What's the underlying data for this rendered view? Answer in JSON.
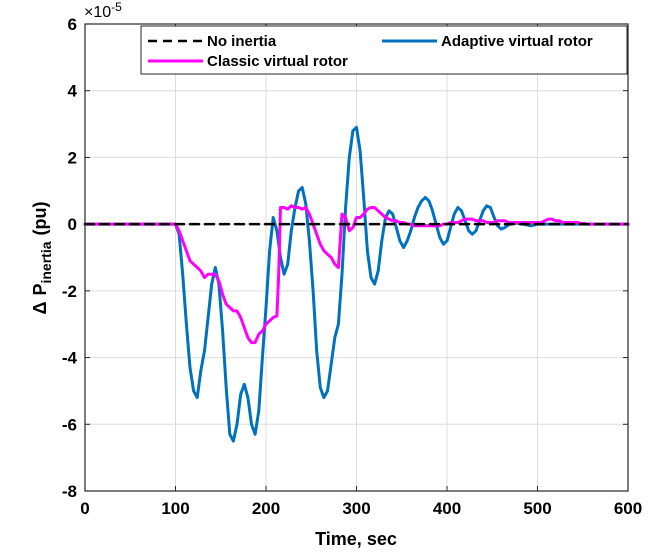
{
  "chart_data": {
    "type": "line",
    "xlabel": "Time, sec",
    "ylabel_parts": {
      "delta": "Δ",
      "main": "P",
      "sub": "inertia",
      "unit": "(pu)"
    },
    "y_exponent": {
      "base": "×10",
      "power": "-5"
    },
    "xlim": [
      0,
      600
    ],
    "ylim": [
      -8,
      6
    ],
    "x_ticks": [
      0,
      100,
      200,
      300,
      400,
      500,
      600
    ],
    "y_ticks": [
      -8,
      -6,
      -4,
      -2,
      0,
      2,
      4,
      6
    ],
    "grid": true,
    "legend_placement": "top",
    "series": [
      {
        "name": "No inertia",
        "color": "#000000",
        "style": "dashed",
        "x": [
          0,
          600
        ],
        "y": [
          0,
          0
        ]
      },
      {
        "name": "Adaptive virtual rotor",
        "color": "#0072BD",
        "style": "solid",
        "x": [
          0,
          100,
          104,
          108,
          112,
          116,
          120,
          124,
          128,
          132,
          136,
          140,
          144,
          148,
          152,
          156,
          160,
          164,
          168,
          172,
          176,
          180,
          184,
          188,
          192,
          196,
          200,
          204,
          208,
          212,
          216,
          220,
          224,
          228,
          232,
          236,
          240,
          244,
          248,
          252,
          256,
          260,
          264,
          268,
          272,
          276,
          280,
          284,
          288,
          292,
          296,
          300,
          304,
          308,
          312,
          316,
          320,
          324,
          328,
          332,
          336,
          340,
          344,
          348,
          352,
          356,
          360,
          364,
          368,
          372,
          376,
          380,
          384,
          388,
          392,
          396,
          400,
          404,
          408,
          412,
          416,
          420,
          424,
          428,
          432,
          436,
          440,
          444,
          448,
          452,
          456,
          460,
          464,
          468,
          472,
          476,
          480,
          484,
          488,
          492,
          496,
          500,
          504,
          508,
          512,
          516,
          520,
          524,
          528,
          532,
          536,
          540,
          544,
          548,
          552,
          556,
          560,
          564,
          568,
          600
        ],
        "y": [
          0,
          0,
          -0.3,
          -1.5,
          -3.0,
          -4.3,
          -5.0,
          -5.2,
          -4.4,
          -3.8,
          -2.8,
          -1.8,
          -1.3,
          -1.8,
          -3.2,
          -4.9,
          -6.3,
          -6.5,
          -6.0,
          -5.1,
          -4.8,
          -5.2,
          -6.0,
          -6.3,
          -5.6,
          -4.0,
          -2.5,
          -0.8,
          0.2,
          -0.2,
          -1.0,
          -1.5,
          -1.2,
          -0.2,
          0.5,
          1.0,
          1.1,
          0.6,
          -0.5,
          -2.0,
          -3.8,
          -4.9,
          -5.2,
          -5.0,
          -4.2,
          -3.4,
          -3.0,
          -1.5,
          0.5,
          2.0,
          2.8,
          2.9,
          2.2,
          0.8,
          -0.8,
          -1.6,
          -1.8,
          -1.4,
          -0.5,
          0.2,
          0.4,
          0.3,
          -0.1,
          -0.5,
          -0.7,
          -0.5,
          -0.2,
          0.2,
          0.5,
          0.7,
          0.8,
          0.7,
          0.4,
          0.0,
          -0.4,
          -0.6,
          -0.5,
          -0.1,
          0.3,
          0.5,
          0.4,
          0.1,
          -0.2,
          -0.3,
          -0.2,
          0.1,
          0.4,
          0.55,
          0.5,
          0.2,
          -0.05,
          -0.15,
          -0.1,
          -0.02,
          0.02,
          0.03,
          0.02,
          0.0,
          -0.02,
          -0.05,
          -0.03,
          0.0,
          0.0,
          0.0,
          0.0,
          0.0,
          0.0,
          0.0,
          0.0,
          0.0,
          0.0,
          0.0,
          0.0,
          0.0,
          0.0,
          0.0,
          0.0,
          0.0,
          0.0,
          0.0
        ]
      },
      {
        "name": "Classic virtual rotor",
        "color": "#FF00FF",
        "style": "solid",
        "x": [
          0,
          100,
          104,
          108,
          112,
          116,
          120,
          124,
          128,
          132,
          136,
          140,
          144,
          148,
          152,
          156,
          160,
          164,
          168,
          172,
          176,
          180,
          184,
          188,
          192,
          196,
          200,
          204,
          208,
          212,
          214,
          216,
          220,
          224,
          228,
          232,
          236,
          240,
          244,
          248,
          252,
          256,
          260,
          264,
          268,
          272,
          276,
          280,
          282,
          284,
          288,
          292,
          296,
          300,
          304,
          308,
          312,
          316,
          320,
          324,
          328,
          332,
          336,
          340,
          344,
          348,
          352,
          356,
          360,
          364,
          368,
          372,
          376,
          380,
          384,
          388,
          392,
          396,
          400,
          404,
          408,
          412,
          416,
          420,
          424,
          428,
          432,
          436,
          440,
          444,
          448,
          452,
          456,
          460,
          464,
          468,
          472,
          476,
          480,
          484,
          488,
          492,
          496,
          500,
          504,
          508,
          512,
          516,
          520,
          524,
          528,
          532,
          536,
          540,
          544,
          548,
          552,
          556,
          560,
          600
        ],
        "y": [
          0,
          0,
          -0.2,
          -0.5,
          -0.8,
          -1.1,
          -1.2,
          -1.3,
          -1.4,
          -1.6,
          -1.5,
          -1.5,
          -1.5,
          -1.7,
          -2.1,
          -2.4,
          -2.5,
          -2.6,
          -2.6,
          -2.8,
          -3.1,
          -3.4,
          -3.55,
          -3.55,
          -3.3,
          -3.2,
          -3.0,
          -2.9,
          -2.8,
          -2.75,
          -1.5,
          0.5,
          0.5,
          0.45,
          0.55,
          0.5,
          0.5,
          0.45,
          0.5,
          0.3,
          0.0,
          -0.3,
          -0.6,
          -0.8,
          -0.9,
          -1.0,
          -1.2,
          -1.3,
          -0.5,
          0.3,
          0.2,
          -0.2,
          -0.1,
          0.2,
          0.2,
          0.3,
          0.45,
          0.5,
          0.5,
          0.4,
          0.3,
          0.2,
          0.15,
          0.1,
          0.1,
          0.05,
          0.05,
          0.0,
          0.0,
          -0.05,
          -0.05,
          -0.05,
          -0.05,
          -0.05,
          -0.05,
          -0.05,
          -0.05,
          0.0,
          0.0,
          0.05,
          0.05,
          0.05,
          0.1,
          0.15,
          0.15,
          0.15,
          0.1,
          0.1,
          0.1,
          0.05,
          0.05,
          0.05,
          0.1,
          0.1,
          0.1,
          0.05,
          0.05,
          0.05,
          0.05,
          0.05,
          0.05,
          0.05,
          0.05,
          0.05,
          0.05,
          0.1,
          0.15,
          0.15,
          0.1,
          0.1,
          0.05,
          0.05,
          0.05,
          0.05,
          0.05,
          0.02,
          0.02,
          0.0,
          0.0,
          0.0
        ]
      }
    ]
  }
}
